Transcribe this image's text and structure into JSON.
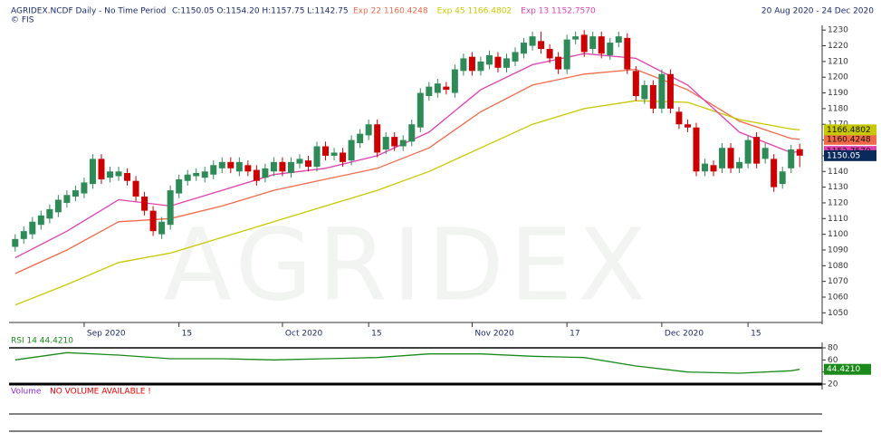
{
  "chart_data": {
    "type": "candlestick",
    "symbol": "AGRIDEX.NCDF Daily - No Time Period",
    "ohlc_text": "C:1150.05 O:1154.20 H:1157.75 L:1142.75",
    "source": "© FIS",
    "date_range": "20 Aug 2020 - 24 Dec 2020",
    "watermark": "AGRIDEX",
    "up_color": "#2e8b57",
    "down_color": "#cc0000",
    "close_label": "1150.05",
    "close_label_color": "#0a2a5c",
    "open": [
      1092,
      1097,
      1100,
      1106,
      1110,
      1114,
      1120,
      1124,
      1126,
      1132,
      1148,
      1136,
      1137,
      1139,
      1134,
      1124,
      1115,
      1100,
      1106,
      1126,
      1134,
      1137,
      1136,
      1138,
      1142,
      1146,
      1140,
      1144,
      1141,
      1136,
      1140,
      1146,
      1139,
      1145,
      1147,
      1143,
      1156,
      1150,
      1152,
      1147,
      1158,
      1163,
      1170,
      1154,
      1162,
      1156,
      1159,
      1168,
      1188,
      1190,
      1194,
      1190,
      1204,
      1213,
      1204,
      1208,
      1213,
      1206,
      1210,
      1215,
      1220,
      1223,
      1218,
      1213,
      1205,
      1224,
      1227,
      1218,
      1226,
      1214,
      1222,
      1225,
      1204,
      1186,
      1195,
      1180,
      1202,
      1178,
      1170,
      1168,
      1140,
      1144,
      1142,
      1155,
      1142,
      1145,
      1162,
      1148,
      1148,
      1132,
      1142,
      1154.2
    ],
    "high": [
      1100,
      1105,
      1111,
      1115,
      1119,
      1125,
      1128,
      1131,
      1136,
      1151,
      1151,
      1143,
      1143,
      1142,
      1137,
      1127,
      1118,
      1111,
      1131,
      1138,
      1141,
      1142,
      1143,
      1147,
      1149,
      1149,
      1149,
      1147,
      1144,
      1145,
      1149,
      1149,
      1149,
      1151,
      1150,
      1159,
      1159,
      1155,
      1155,
      1163,
      1167,
      1173,
      1173,
      1165,
      1165,
      1163,
      1173,
      1193,
      1197,
      1199,
      1197,
      1208,
      1215,
      1216,
      1213,
      1217,
      1216,
      1215,
      1219,
      1225,
      1229,
      1229,
      1221,
      1216,
      1227,
      1229,
      1230,
      1229,
      1229,
      1225,
      1229,
      1228,
      1207,
      1198,
      1198,
      1205,
      1205,
      1181,
      1173,
      1171,
      1148,
      1147,
      1158,
      1158,
      1149,
      1163,
      1165,
      1158,
      1151,
      1143,
      1157,
      1157.75
    ],
    "low": [
      1089,
      1094,
      1097,
      1103,
      1107,
      1111,
      1117,
      1121,
      1123,
      1129,
      1132,
      1133,
      1134,
      1131,
      1121,
      1112,
      1099,
      1097,
      1103,
      1123,
      1131,
      1134,
      1133,
      1135,
      1139,
      1139,
      1137,
      1137,
      1131,
      1133,
      1137,
      1137,
      1136,
      1142,
      1140,
      1140,
      1147,
      1147,
      1143,
      1144,
      1155,
      1160,
      1149,
      1151,
      1153,
      1153,
      1156,
      1165,
      1185,
      1187,
      1189,
      1187,
      1201,
      1201,
      1201,
      1205,
      1203,
      1203,
      1207,
      1212,
      1217,
      1215,
      1209,
      1202,
      1202,
      1221,
      1213,
      1215,
      1212,
      1211,
      1219,
      1202,
      1185,
      1183,
      1177,
      1177,
      1177,
      1167,
      1165,
      1137,
      1137,
      1137,
      1139,
      1139,
      1139,
      1142,
      1142,
      1145,
      1127,
      1129,
      1139,
      1142.75
    ],
    "close": [
      1097,
      1102,
      1108,
      1112,
      1116,
      1122,
      1125,
      1128,
      1133,
      1148,
      1135,
      1140,
      1140,
      1134,
      1124,
      1115,
      1102,
      1108,
      1128,
      1135,
      1138,
      1139,
      1140,
      1144,
      1146,
      1142,
      1146,
      1140,
      1134,
      1142,
      1146,
      1140,
      1146,
      1148,
      1143,
      1156,
      1150,
      1152,
      1146,
      1160,
      1164,
      1170,
      1152,
      1162,
      1156,
      1160,
      1170,
      1190,
      1194,
      1196,
      1192,
      1205,
      1212,
      1204,
      1210,
      1214,
      1206,
      1212,
      1216,
      1222,
      1226,
      1218,
      1212,
      1205,
      1224,
      1226,
      1216,
      1226,
      1215,
      1222,
      1226,
      1205,
      1188,
      1195,
      1180,
      1202,
      1180,
      1170,
      1168,
      1140,
      1145,
      1140,
      1155,
      1142,
      1146,
      1160,
      1145,
      1155,
      1130,
      1140,
      1154,
      1150.05
    ],
    "series": [
      {
        "name": "Exp 22 1160.4248",
        "color": "#f06a4a",
        "end_label": "1160.4248",
        "x": [
          0,
          6,
          12,
          18,
          24,
          30,
          36,
          42,
          48,
          54,
          60,
          66,
          72,
          78,
          84,
          90,
          91
        ],
        "values": [
          1075,
          1090,
          1108,
          1110,
          1118,
          1128,
          1135,
          1142,
          1155,
          1178,
          1195,
          1202,
          1205,
          1192,
          1172,
          1161,
          1160.4248
        ]
      },
      {
        "name": "Exp 45 1166.4802",
        "color": "#c8c800",
        "end_label": "1166.4802",
        "x": [
          0,
          6,
          12,
          18,
          24,
          30,
          36,
          42,
          48,
          54,
          60,
          66,
          72,
          78,
          84,
          90,
          91
        ],
        "values": [
          1055,
          1068,
          1082,
          1088,
          1098,
          1108,
          1118,
          1128,
          1140,
          1155,
          1170,
          1180,
          1185,
          1184,
          1173,
          1167,
          1166.4802
        ]
      },
      {
        "name": "Exp 13 1152.7570",
        "color": "#e040b0",
        "end_label": "1152.7570",
        "x": [
          0,
          6,
          12,
          18,
          24,
          30,
          36,
          42,
          48,
          54,
          60,
          66,
          72,
          78,
          84,
          90,
          91
        ],
        "values": [
          1085,
          1102,
          1122,
          1118,
          1128,
          1138,
          1142,
          1150,
          1165,
          1192,
          1208,
          1215,
          1212,
          1195,
          1165,
          1152,
          1152.757
        ]
      }
    ],
    "xlim": [
      -0.5,
      91.5
    ],
    "xticks": [
      {
        "value": 8,
        "label": "Sep 2020"
      },
      {
        "value": 19,
        "label": "15"
      },
      {
        "value": 31,
        "label": "Oct 2020"
      },
      {
        "value": 41,
        "label": "15"
      },
      {
        "value": 53,
        "label": "Nov 2020"
      },
      {
        "value": 64,
        "label": "17"
      },
      {
        "value": 75,
        "label": "Dec 2020"
      },
      {
        "value": 85,
        "label": "15"
      }
    ],
    "ylim": [
      1045,
      1233
    ],
    "yticks": [
      1050,
      1060,
      1070,
      1080,
      1090,
      1100,
      1110,
      1120,
      1130,
      1140,
      1150,
      1160,
      1170,
      1180,
      1190,
      1200,
      1210,
      1220,
      1230
    ],
    "rsi": {
      "name": "RSI 14  44.4210",
      "color": "#1a8a1a",
      "end_label": "44.4210",
      "x": [
        0,
        6,
        12,
        18,
        24,
        30,
        36,
        42,
        48,
        54,
        60,
        66,
        72,
        78,
        84,
        90,
        91
      ],
      "values": [
        60,
        72,
        68,
        62,
        62,
        60,
        62,
        64,
        70,
        70,
        66,
        64,
        50,
        40,
        38,
        42,
        44.421
      ],
      "ylim": [
        20,
        80
      ],
      "yticks": [
        20,
        40,
        60,
        80
      ]
    },
    "volume_title": "Volume",
    "volume_note": "NO VOLUME AVAILABLE !"
  }
}
